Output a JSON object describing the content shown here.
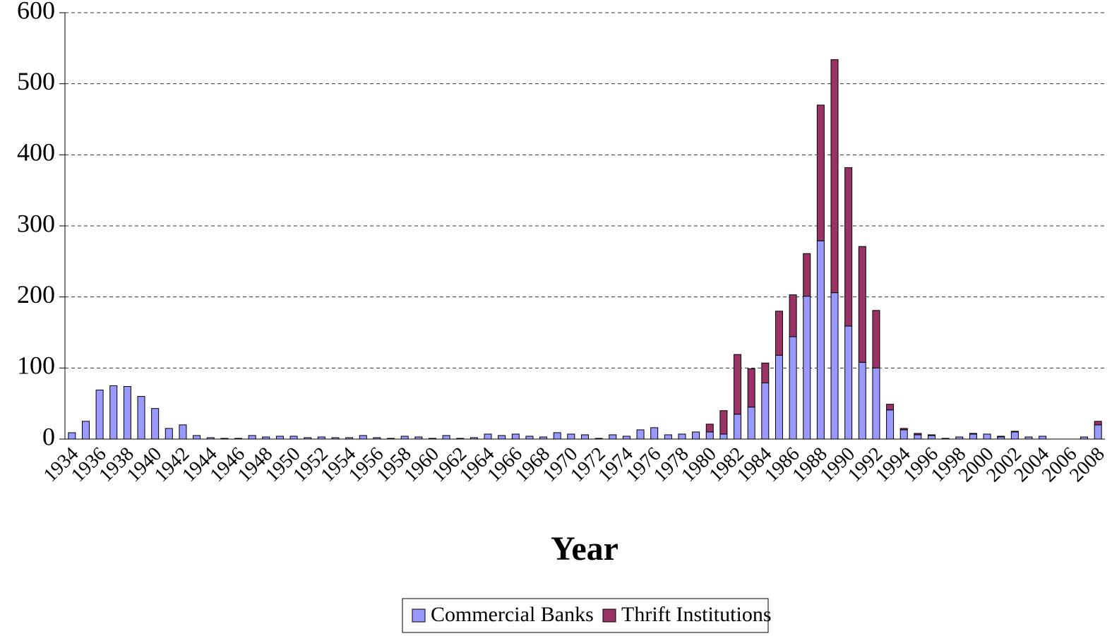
{
  "chart_data": {
    "type": "stacked_bar",
    "xlabel": "Year",
    "categories": [
      "1934",
      null,
      "1936",
      null,
      "1938",
      null,
      "1940",
      null,
      "1942",
      null,
      "1944",
      null,
      "1946",
      null,
      "1948",
      null,
      "1950",
      null,
      "1952",
      null,
      "1954",
      null,
      "1956",
      null,
      "1958",
      null,
      "1960",
      null,
      "1962",
      null,
      "1964",
      null,
      "1966",
      null,
      "1968",
      null,
      "1970",
      null,
      "1972",
      null,
      "1974",
      null,
      "1976",
      null,
      "1978",
      null,
      "1980",
      null,
      "1982",
      null,
      "1984",
      null,
      "1986",
      null,
      "1988",
      null,
      "1990",
      null,
      "1992",
      null,
      "1994",
      null,
      "1996",
      null,
      "1998",
      null,
      "2000",
      null,
      "2002",
      null,
      "2004",
      null,
      "2006",
      null,
      "2008"
    ],
    "series": [
      {
        "name": "Commercial Banks",
        "color": "#9999ff",
        "values": [
          9,
          25,
          69,
          75,
          74,
          60,
          43,
          15,
          20,
          5,
          2,
          1,
          1,
          5,
          3,
          4,
          4,
          2,
          3,
          2,
          2,
          5,
          2,
          1,
          4,
          3,
          1,
          5,
          1,
          2,
          7,
          5,
          7,
          4,
          3,
          9,
          7,
          6,
          1,
          6,
          4,
          13,
          16,
          6,
          7,
          10,
          10,
          7,
          35,
          45,
          79,
          118,
          144,
          201,
          279,
          206,
          159,
          108,
          100,
          41,
          13,
          6,
          5,
          1,
          3,
          7,
          7,
          3,
          10,
          3,
          4,
          0,
          0,
          3,
          20
        ]
      },
      {
        "name": "Thrift Institutions",
        "color": "#993366",
        "values": [
          0,
          0,
          0,
          0,
          0,
          0,
          0,
          0,
          0,
          0,
          0,
          0,
          0,
          0,
          0,
          0,
          0,
          0,
          0,
          0,
          0,
          0,
          0,
          0,
          0,
          0,
          0,
          0,
          0,
          0,
          0,
          0,
          0,
          0,
          0,
          0,
          0,
          0,
          0,
          0,
          0,
          0,
          0,
          0,
          0,
          0,
          11,
          33,
          84,
          54,
          28,
          62,
          59,
          60,
          191,
          328,
          223,
          163,
          81,
          8,
          2,
          2,
          1,
          0,
          0,
          1,
          0,
          1,
          1,
          0,
          0,
          0,
          0,
          0,
          5
        ]
      }
    ],
    "ylim": [
      0,
      600
    ],
    "yticks": [
      0,
      100,
      200,
      300,
      400,
      500,
      600
    ],
    "grid": true,
    "legend": "bottom"
  }
}
